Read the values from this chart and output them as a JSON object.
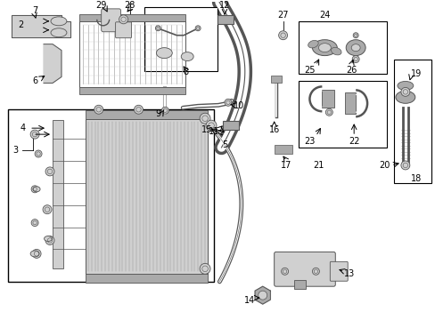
{
  "bg_color": "#ffffff",
  "line_color": "#000000",
  "fig_width": 4.89,
  "fig_height": 3.6,
  "dpi": 100,
  "gray_light": "#d0d0d0",
  "gray_med": "#aaaaaa",
  "gray_dark": "#555555",
  "part_color": "#888888"
}
